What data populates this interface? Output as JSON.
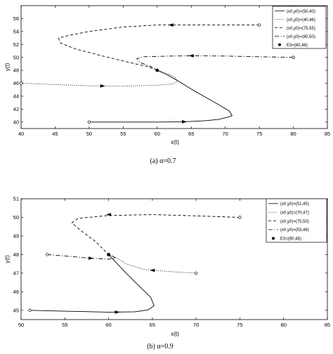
{
  "chart_data": [
    {
      "type": "line",
      "caption": "(a)  α=0.7",
      "xlabel": "x(t)",
      "ylabel": "y(t)",
      "xlim": [
        40,
        85
      ],
      "ylim": [
        39,
        58
      ],
      "xticks": [
        40,
        45,
        50,
        55,
        60,
        65,
        70,
        75,
        80,
        85
      ],
      "yticks": [
        40,
        42,
        44,
        46,
        48,
        50,
        52,
        54,
        56
      ],
      "legend_position": "top-right",
      "series": [
        {
          "name": "(x0,y0)=(50,40)",
          "style": "solid",
          "points": [
            [
              50,
              40
            ],
            [
              55,
              40
            ],
            [
              60,
              40
            ],
            [
              64,
              40.05
            ],
            [
              67,
              40.2
            ],
            [
              69,
              40.4
            ],
            [
              70.5,
              40.8
            ],
            [
              71,
              41
            ],
            [
              70.6,
              41.7
            ],
            [
              69,
              42.7
            ],
            [
              67,
              43.9
            ],
            [
              65,
              45.1
            ],
            [
              63,
              46.4
            ],
            [
              61.5,
              47.3
            ],
            [
              60,
              48
            ]
          ],
          "arrows": [
            [
              64,
              40.05,
              1,
              0
            ]
          ]
        },
        {
          "name": "(x0,y0)=(40,46)",
          "style": "dotted",
          "points": [
            [
              40,
              46
            ],
            [
              45,
              45.8
            ],
            [
              50,
              45.6
            ],
            [
              55,
              45.55
            ],
            [
              60,
              45.7
            ],
            [
              62.3,
              45.9
            ],
            [
              63,
              46.3
            ],
            [
              62.5,
              47
            ],
            [
              61,
              47.7
            ],
            [
              60,
              48
            ]
          ],
          "arrows": [
            [
              52,
              45.58,
              1,
              0
            ]
          ]
        },
        {
          "name": "(x0,y0)=(75,55)",
          "style": "dashed",
          "points": [
            [
              75,
              55
            ],
            [
              70,
              55
            ],
            [
              65,
              55
            ],
            [
              60,
              55
            ],
            [
              55,
              54.7
            ],
            [
              50,
              54
            ],
            [
              47,
              53.4
            ],
            [
              45.5,
              53
            ],
            [
              45.8,
              52.2
            ],
            [
              48,
              51.3
            ],
            [
              52,
              50.2
            ],
            [
              56,
              49.2
            ],
            [
              58.5,
              48.6
            ],
            [
              60,
              48
            ]
          ],
          "arrows": [
            [
              62,
              55,
              -1,
              0
            ]
          ]
        },
        {
          "name": "(x0,y0)=(80,50)",
          "style": "dashdot",
          "points": [
            [
              80,
              50
            ],
            [
              75,
              50.1
            ],
            [
              70,
              50.2
            ],
            [
              65,
              50.25
            ],
            [
              62,
              50.2
            ],
            [
              58,
              50.1
            ],
            [
              57,
              49.8
            ],
            [
              57.5,
              49.2
            ],
            [
              59,
              48.6
            ],
            [
              60,
              48
            ]
          ],
          "arrows": [
            [
              65,
              50.25,
              -1,
              0
            ]
          ]
        }
      ],
      "equilibrium": {
        "name": "E3=(60,48)",
        "x": 60,
        "y": 48
      }
    },
    {
      "type": "line",
      "caption": "(b)  α=0.9",
      "xlabel": "x(t)",
      "ylabel": "y(t)",
      "xlim": [
        50,
        85
      ],
      "ylim": [
        44.5,
        51
      ],
      "xticks": [
        50,
        55,
        60,
        65,
        70,
        75,
        80,
        85
      ],
      "yticks": [
        45,
        46,
        47,
        48,
        49,
        50,
        51
      ],
      "legend_position": "top-right",
      "series": [
        {
          "name": "(x0,y0)=(51,45)",
          "style": "solid",
          "points": [
            [
              51,
              45
            ],
            [
              55,
              44.95
            ],
            [
              60,
              44.9
            ],
            [
              63,
              44.92
            ],
            [
              64.5,
              45.02
            ],
            [
              65.2,
              45.25
            ],
            [
              64.8,
              45.7
            ],
            [
              63.5,
              46.3
            ],
            [
              62,
              47
            ],
            [
              61,
              47.5
            ],
            [
              60,
              48
            ]
          ],
          "arrows": [
            [
              61,
              44.9,
              1,
              0
            ]
          ]
        },
        {
          "name": "(x0,y0)=(70,47)",
          "style": "dotted",
          "points": [
            [
              70,
              47
            ],
            [
              67,
              47.08
            ],
            [
              64,
              47.2
            ],
            [
              62,
              47.5
            ],
            [
              61,
              47.8
            ],
            [
              60,
              48
            ]
          ],
          "arrows": [
            [
              65,
              47.15,
              -1,
              0
            ]
          ]
        },
        {
          "name": "(x0,y0)=(75,50)",
          "style": "dashed",
          "points": [
            [
              75,
              50
            ],
            [
              70,
              50.08
            ],
            [
              65,
              50.15
            ],
            [
              60,
              50.1
            ],
            [
              56.5,
              49.95
            ],
            [
              55.8,
              49.7
            ],
            [
              56.8,
              49.3
            ],
            [
              58.5,
              48.7
            ],
            [
              60,
              48
            ]
          ],
          "arrows": [
            [
              60,
              50.15,
              -1,
              0
            ]
          ]
        },
        {
          "name": "(x0,y0)=(53,48)",
          "style": "dashdot",
          "points": [
            [
              53,
              48
            ],
            [
              55.5,
              47.9
            ],
            [
              58,
              47.8
            ],
            [
              60,
              47.75
            ],
            [
              60.8,
              47.8
            ],
            [
              60.5,
              47.9
            ],
            [
              60,
              48
            ]
          ],
          "arrows": [
            [
              58,
              47.8,
              1,
              0
            ]
          ]
        }
      ],
      "equilibrium": {
        "name": "E3=(60,48)",
        "x": 60,
        "y": 48
      }
    }
  ]
}
